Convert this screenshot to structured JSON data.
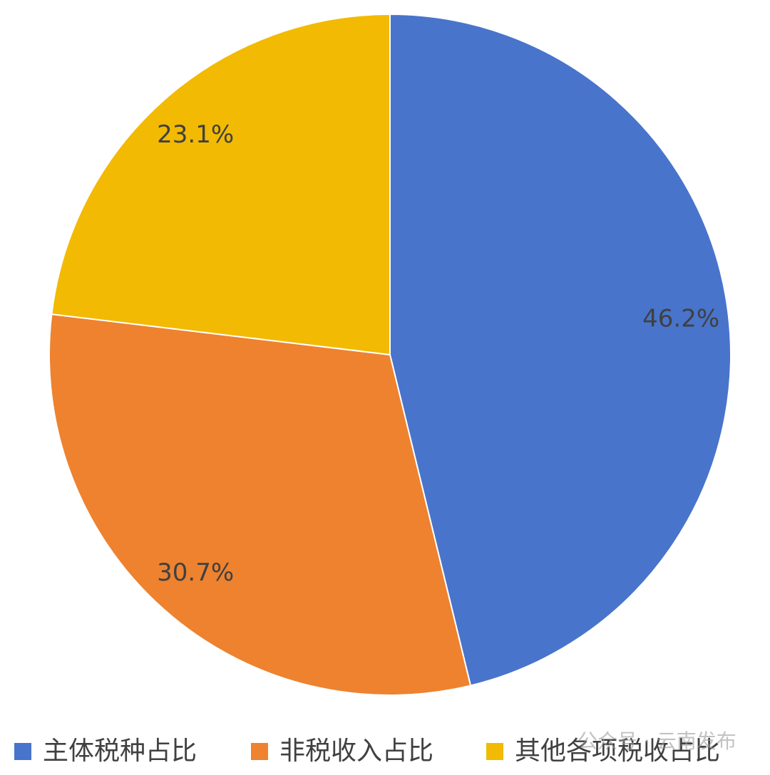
{
  "chart_data": {
    "type": "pie",
    "categories": [
      "主体税种占比",
      "非税收入占比",
      "其他各项税收占比"
    ],
    "values": [
      46.2,
      30.7,
      23.1
    ],
    "value_labels": [
      "46.2%",
      "30.7%",
      "23.1%"
    ],
    "colors": [
      "#4874cb",
      "#ee822f",
      "#f2ba02"
    ],
    "legend": "bottom"
  },
  "watermark": "公众号 · 云南发布"
}
